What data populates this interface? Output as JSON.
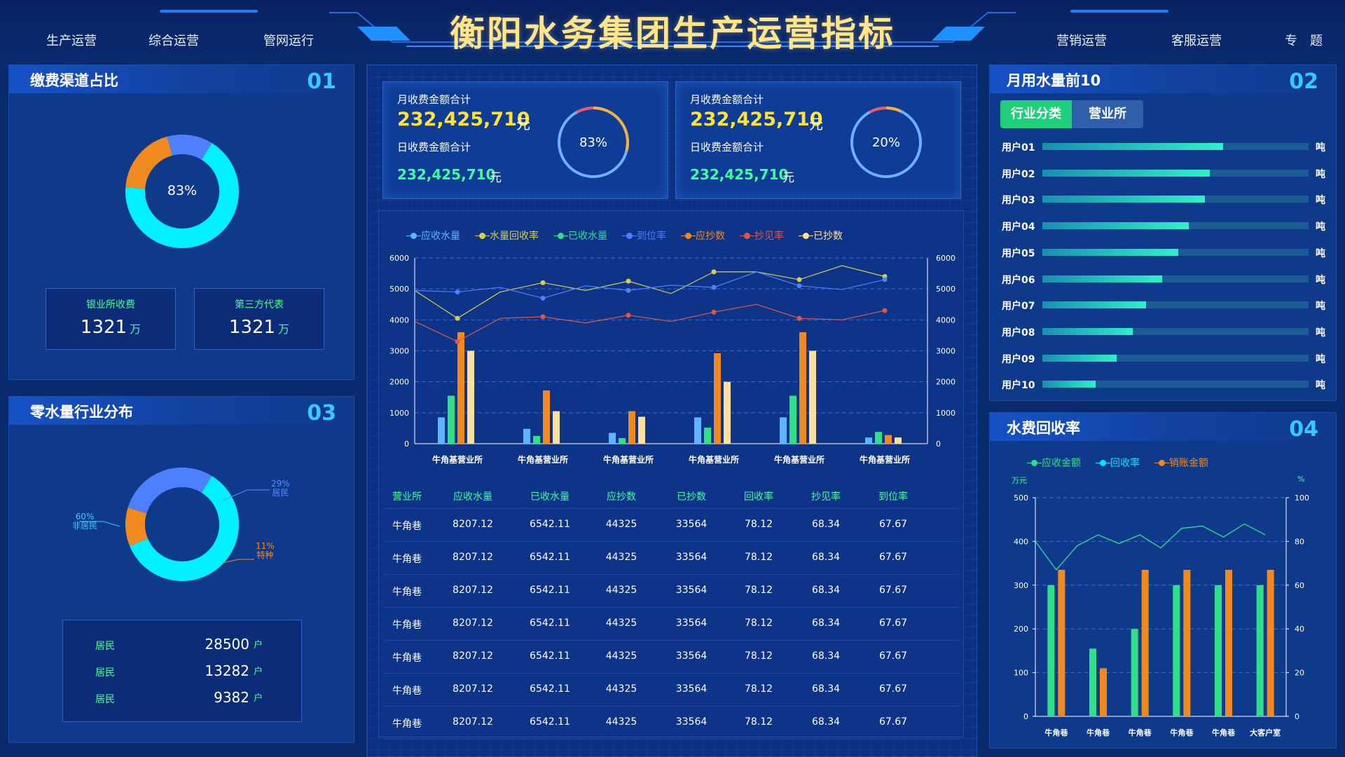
{
  "header": {
    "title": "衡阳水务集团生产运营指标",
    "nav_left": [
      "生产运营",
      "综合运营",
      "管网运行"
    ],
    "nav_right": [
      "营销运营",
      "客服运营",
      "专　题"
    ]
  },
  "panel1": {
    "title": "缴费渠道占比",
    "num": "01",
    "center_label": "83%",
    "donut": [
      {
        "value": 62,
        "color": "#00f0ff"
      },
      {
        "value": 18,
        "color": "#f08a1e"
      },
      {
        "value": 12,
        "color": "#4d7fff"
      }
    ],
    "boxes": [
      {
        "label": "银业所收费",
        "value": "1321",
        "unit": "万"
      },
      {
        "label": "第三方代表",
        "value": "1321",
        "unit": "万"
      }
    ]
  },
  "panel3": {
    "title": "零水量行业分布",
    "num": "03",
    "donut": [
      {
        "value": 60,
        "color": "#00f0ff"
      },
      {
        "value": 11,
        "color": "#f08a1e"
      },
      {
        "value": 29,
        "color": "#4d7fff"
      }
    ],
    "labels": [
      {
        "pct": "29%",
        "name": "居民",
        "color": "#5b8cff"
      },
      {
        "pct": "11%",
        "name": "特种",
        "color": "#f08a1e"
      },
      {
        "pct": "60%",
        "name": "非居民",
        "color": "#38c8ff"
      }
    ],
    "rows": [
      {
        "label": "居民",
        "value": "28500",
        "unit": "户"
      },
      {
        "label": "居民",
        "value": "13282",
        "unit": "户"
      },
      {
        "label": "居民",
        "value": "9382",
        "unit": "户"
      }
    ]
  },
  "stat1": {
    "label1": "月收费金额合计",
    "value1": "232,425,710",
    "unit": "元",
    "label2": "日收费金额合计",
    "value2": "232,425,710",
    "ring": "83%",
    "ring_value": 83
  },
  "stat2": {
    "label1": "月收费金额合计",
    "value1": "232,425,710",
    "unit": "元",
    "label2": "日收费金额合计",
    "value2": "232,425,710",
    "ring": "20%",
    "ring_value": 20
  },
  "main_chart": {
    "chart_data": {
      "type": "bar",
      "legend": [
        {
          "name": "应收水量",
          "color": "#5fb4ff"
        },
        {
          "name": "水量回收率",
          "color": "#d6cf4a"
        },
        {
          "name": "已收水量",
          "color": "#2fe08a"
        },
        {
          "name": "到位率",
          "color": "#4d7fff"
        },
        {
          "name": "应抄数",
          "color": "#f08a1e"
        },
        {
          "name": "抄见率",
          "color": "#e0574a"
        },
        {
          "name": "已抄数",
          "color": "#fde0a0"
        }
      ],
      "categories": [
        "牛角基营业所",
        "牛角基营业所",
        "牛角基营业所",
        "牛角基营业所",
        "牛角基营业所",
        "牛角基营业所"
      ],
      "yticks": [
        0,
        1000,
        2000,
        3000,
        4000,
        5000,
        6000
      ],
      "ylim": [
        0,
        6000
      ],
      "bars": [
        {
          "name": "应收水量",
          "color": "#5fb4ff",
          "values": [
            850,
            480,
            350,
            850,
            850,
            200
          ]
        },
        {
          "name": "已收水量",
          "color": "#2fe08a",
          "values": [
            1550,
            250,
            180,
            520,
            1550,
            380
          ]
        },
        {
          "name": "应抄数",
          "color": "#f08a1e",
          "values": [
            3600,
            1720,
            1050,
            2920,
            3600,
            280
          ]
        },
        {
          "name": "已抄数",
          "color": "#fde0a0",
          "values": [
            3000,
            1050,
            870,
            2000,
            3000,
            200
          ]
        }
      ],
      "lines": [
        {
          "name": "水量回收率",
          "color": "#d6cf4a",
          "x": [
            0,
            0.5,
            1,
            1.5,
            2,
            2.5,
            3,
            3.5,
            4,
            4.5,
            5,
            5.5
          ],
          "values": [
            4950,
            4050,
            4900,
            5200,
            4950,
            5250,
            4850,
            5550,
            5550,
            5300,
            5750,
            5400
          ]
        },
        {
          "name": "到位率",
          "color": "#4d7fff",
          "x": [
            0,
            0.5,
            1,
            1.5,
            2,
            2.5,
            3,
            3.5,
            4,
            4.5,
            5,
            5.5
          ],
          "values": [
            4950,
            4900,
            5050,
            4700,
            5100,
            4950,
            5120,
            5050,
            5550,
            5100,
            4980,
            5300
          ]
        },
        {
          "name": "抄见率",
          "color": "#e0574a",
          "x": [
            0,
            0.5,
            1,
            1.5,
            2,
            2.5,
            3,
            3.5,
            4,
            4.5,
            5,
            5.5
          ],
          "values": [
            3950,
            3300,
            4050,
            4100,
            3900,
            4150,
            3950,
            4250,
            4500,
            4050,
            4000,
            4300
          ]
        }
      ]
    }
  },
  "table": {
    "headers": [
      "营业所",
      "应收水量",
      "已收水量",
      "应抄数",
      "已抄数",
      "回收率",
      "抄见率",
      "到位率"
    ],
    "rows": [
      [
        "牛角巷",
        "8207.12",
        "6542.11",
        "44325",
        "33564",
        "78.12",
        "68.34",
        "67.67"
      ],
      [
        "牛角巷",
        "8207.12",
        "6542.11",
        "44325",
        "33564",
        "78.12",
        "68.34",
        "67.67"
      ],
      [
        "牛角巷",
        "8207.12",
        "6542.11",
        "44325",
        "33564",
        "78.12",
        "68.34",
        "67.67"
      ],
      [
        "牛角巷",
        "8207.12",
        "6542.11",
        "44325",
        "33564",
        "78.12",
        "68.34",
        "67.67"
      ],
      [
        "牛角巷",
        "8207.12",
        "6542.11",
        "44325",
        "33564",
        "78.12",
        "68.34",
        "67.67"
      ],
      [
        "牛角巷",
        "8207.12",
        "6542.11",
        "44325",
        "33564",
        "78.12",
        "68.34",
        "67.67"
      ],
      [
        "牛角巷",
        "8207.12",
        "6542.11",
        "44325",
        "33564",
        "78.12",
        "68.34",
        "67.67"
      ]
    ]
  },
  "panel2": {
    "title": "月用水量前10",
    "num": "02",
    "tabs": [
      "行业分类",
      "营业所"
    ],
    "chart_data": {
      "type": "bar",
      "unit": "吨",
      "categories": [
        "用户01",
        "用户02",
        "用户03",
        "用户04",
        "用户05",
        "用户06",
        "用户07",
        "用户08",
        "用户09",
        "用户10"
      ],
      "values": [
        68,
        63,
        61,
        55,
        51,
        45,
        39,
        34,
        28,
        20
      ],
      "max": 100
    }
  },
  "panel4": {
    "title": "水费回收率",
    "num": "04",
    "chart_data": {
      "type": "bar",
      "legend": [
        {
          "name": "应收金额",
          "color": "#2fe08a"
        },
        {
          "name": "回收率",
          "color": "#00e5ff"
        },
        {
          "name": "销账金额",
          "color": "#f08a1e"
        }
      ],
      "ylabel_left": "万元",
      "ylabel_right": "%",
      "yticks_left": [
        0,
        100,
        200,
        300,
        400,
        500
      ],
      "yticks_right": [
        0,
        20,
        40,
        60,
        80,
        100
      ],
      "categories": [
        "牛角巷",
        "牛角巷",
        "牛角巷",
        "牛角巷",
        "牛角巷",
        "大客户室"
      ],
      "series": [
        {
          "name": "应收金额",
          "color": "#2fe08a",
          "values": [
            300,
            155,
            200,
            300,
            300,
            300
          ]
        },
        {
          "name": "销账金额",
          "color": "#f08a1e",
          "values": [
            335,
            110,
            335,
            335,
            335,
            335
          ]
        }
      ],
      "line": {
        "name": "回收率",
        "color": "#2fe08a",
        "x": [
          0,
          0.5,
          1,
          1.5,
          2,
          2.5,
          3,
          3.5,
          4,
          4.5,
          5,
          5.5
        ],
        "values": [
          80,
          67,
          78,
          83,
          79,
          83,
          77,
          86,
          87,
          82,
          88,
          83
        ]
      }
    }
  }
}
